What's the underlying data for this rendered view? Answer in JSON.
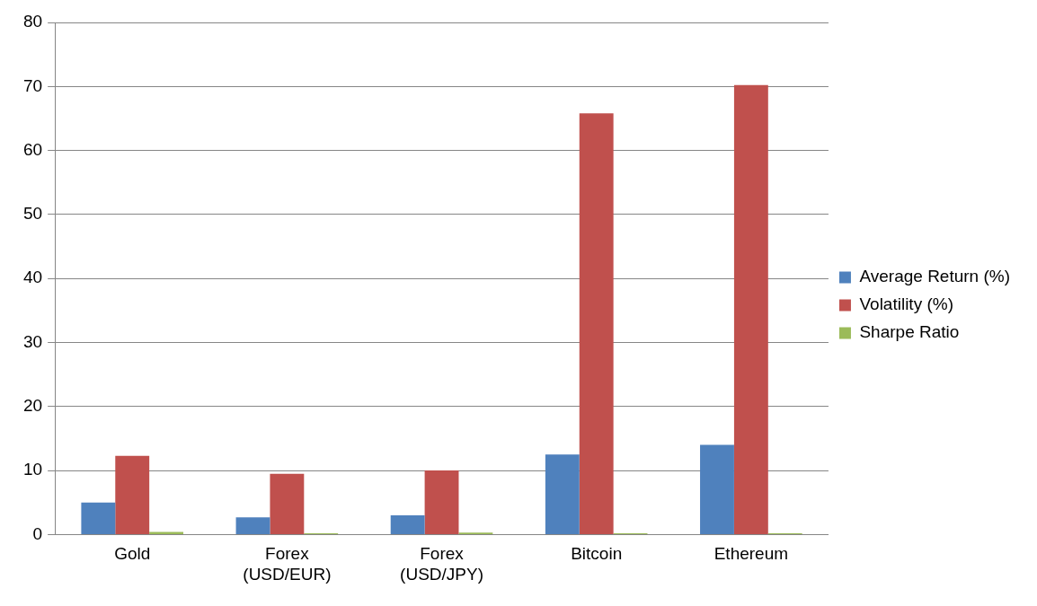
{
  "chart_data": {
    "type": "bar",
    "categories": [
      "Gold",
      "Forex\n(USD/EUR)",
      "Forex\n(USD/JPY)",
      "Bitcoin",
      "Ethereum"
    ],
    "series": [
      {
        "name": "Average Return (%)",
        "color": "#4f81bd",
        "values": [
          5.0,
          2.7,
          3.0,
          12.5,
          14.0
        ]
      },
      {
        "name": "Volatility (%)",
        "color": "#c0504d",
        "values": [
          12.3,
          9.5,
          10.0,
          65.8,
          70.2
        ]
      },
      {
        "name": "Sharpe Ratio",
        "color": "#9bbb59",
        "values": [
          0.4,
          0.2,
          0.3,
          0.2,
          0.2
        ]
      }
    ],
    "ylim": [
      0,
      80
    ],
    "yticks": [
      0,
      10,
      20,
      30,
      40,
      50,
      60,
      70,
      80
    ],
    "grid": "y",
    "legend": "right"
  }
}
